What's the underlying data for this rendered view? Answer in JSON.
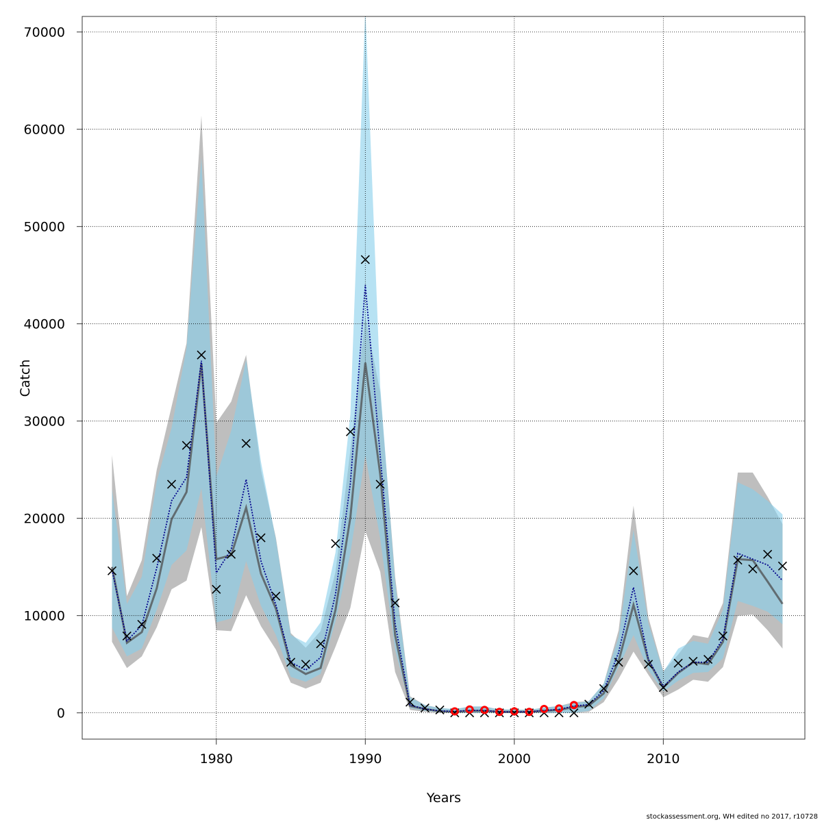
{
  "chart_data": {
    "type": "line",
    "xlabel": "Years",
    "ylabel": "Catch",
    "xlim": [
      1971.0,
      2019.5
    ],
    "ylim": [
      -2700,
      71600
    ],
    "x_ticks": [
      1980,
      1990,
      2000,
      2010
    ],
    "y_ticks": [
      0,
      10000,
      20000,
      30000,
      40000,
      50000,
      60000,
      70000
    ],
    "y_tick_labels": [
      "0",
      "10000",
      "20000",
      "30000",
      "40000",
      "50000",
      "60000",
      "70000"
    ],
    "grid": true,
    "x": [
      1973,
      1974,
      1975,
      1976,
      1977,
      1978,
      1979,
      1980,
      1981,
      1982,
      1983,
      1984,
      1985,
      1986,
      1987,
      1988,
      1989,
      1990,
      1991,
      1992,
      1993,
      1994,
      1995,
      1996,
      1997,
      1998,
      1999,
      2000,
      2001,
      2002,
      2003,
      2004,
      2005,
      2006,
      2007,
      2008,
      2009,
      2010,
      2011,
      2012,
      2013,
      2014,
      2015,
      2016,
      2017,
      2018
    ],
    "series": [
      {
        "name": "",
        "role": "band-grey-upper",
        "color": "#bebebe",
        "values": [
          26500,
          12000,
          15700,
          25000,
          31500,
          38000,
          61400,
          29800,
          32000,
          36800,
          25000,
          18000,
          8200,
          6700,
          8400,
          14500,
          27000,
          40700,
          33000,
          14000,
          1700,
          800,
          500,
          350,
          650,
          650,
          350,
          350,
          300,
          550,
          700,
          1100,
          1200,
          3000,
          8500,
          21300,
          9800,
          4300,
          6000,
          8000,
          7700,
          11300,
          24700,
          24700,
          22200,
          19400
        ]
      },
      {
        "name": "",
        "role": "band-grey-lower",
        "color": "#bebebe",
        "values": [
          7300,
          4600,
          5800,
          8800,
          12700,
          13600,
          19100,
          8500,
          8400,
          12100,
          8900,
          6500,
          3100,
          2500,
          3100,
          6800,
          10800,
          18700,
          14500,
          4200,
          300,
          100,
          50,
          0,
          0,
          0,
          0,
          0,
          0,
          0,
          0,
          0,
          100,
          1100,
          3500,
          6300,
          3900,
          1600,
          2400,
          3400,
          3200,
          4700,
          10000,
          10100,
          8500,
          6600
        ]
      },
      {
        "name": "",
        "role": "band-blue-upper",
        "color": "#87ceeb",
        "values": [
          23000,
          11200,
          14000,
          23800,
          29300,
          37500,
          57100,
          24300,
          29000,
          36300,
          25800,
          17800,
          8000,
          7200,
          9300,
          16500,
          30700,
          72500,
          33500,
          13500,
          1600,
          800,
          500,
          400,
          650,
          650,
          350,
          350,
          300,
          550,
          700,
          1000,
          1200,
          3000,
          7800,
          18800,
          9200,
          4200,
          6600,
          7400,
          7100,
          10600,
          23700,
          23000,
          21800,
          20400
        ]
      },
      {
        "name": "",
        "role": "band-blue-lower",
        "color": "#87ceeb",
        "values": [
          8800,
          5800,
          6600,
          10600,
          15200,
          16700,
          23100,
          9300,
          9700,
          15600,
          11000,
          8000,
          3700,
          3200,
          4000,
          9400,
          16400,
          26500,
          17900,
          6500,
          500,
          200,
          50,
          0,
          0,
          0,
          0,
          0,
          0,
          0,
          0,
          0,
          200,
          1500,
          4700,
          8000,
          4400,
          2200,
          3300,
          4100,
          4200,
          5600,
          11500,
          11000,
          10400,
          9100
        ]
      },
      {
        "name": "",
        "role": "median-grey",
        "color": "#4d4d4d",
        "values": [
          15000,
          7200,
          8300,
          12800,
          19900,
          22700,
          35900,
          15800,
          16200,
          21100,
          14300,
          10700,
          4900,
          4000,
          4600,
          10600,
          20100,
          36000,
          24500,
          8000,
          700,
          400,
          150,
          100,
          200,
          200,
          100,
          100,
          100,
          200,
          300,
          600,
          750,
          2000,
          5300,
          11100,
          5400,
          2600,
          4100,
          5200,
          5000,
          7300,
          15800,
          15700,
          13500,
          11200
        ]
      },
      {
        "name": "",
        "role": "median-blue-dotted",
        "color": "#00008b",
        "values": [
          14700,
          7400,
          9000,
          14900,
          21800,
          24200,
          36200,
          14400,
          16800,
          24000,
          15600,
          11100,
          5200,
          4400,
          5700,
          12200,
          23600,
          44000,
          26400,
          9200,
          800,
          400,
          200,
          150,
          250,
          250,
          100,
          100,
          100,
          250,
          350,
          700,
          850,
          2300,
          6200,
          12900,
          5500,
          2700,
          4200,
          5200,
          5200,
          7600,
          16400,
          15800,
          15200,
          13600
        ]
      },
      {
        "name": "",
        "role": "observed-x",
        "color": "#000000",
        "values": [
          14600,
          7900,
          9100,
          15900,
          23500,
          27500,
          36800,
          12700,
          16300,
          27700,
          18000,
          12000,
          5200,
          5000,
          7100,
          17400,
          28900,
          46600,
          23500,
          11300,
          1100,
          500,
          300,
          0,
          0,
          0,
          0,
          0,
          0,
          0,
          0,
          0,
          900,
          2500,
          5200,
          14600,
          5000,
          2600,
          5100,
          5300,
          5500,
          7900,
          15700,
          14800,
          16300,
          15100
        ]
      },
      {
        "name": "",
        "role": "observed-red-circles",
        "color": "#ff0000",
        "x": [
          1996,
          1997,
          1998,
          1999,
          2000,
          2001,
          2002,
          2003,
          2004
        ],
        "values": [
          150,
          350,
          300,
          100,
          150,
          100,
          400,
          450,
          800
        ]
      }
    ]
  },
  "footer": {
    "credit": "stockassessment.org, WH  edited  no  2017, r10728"
  }
}
